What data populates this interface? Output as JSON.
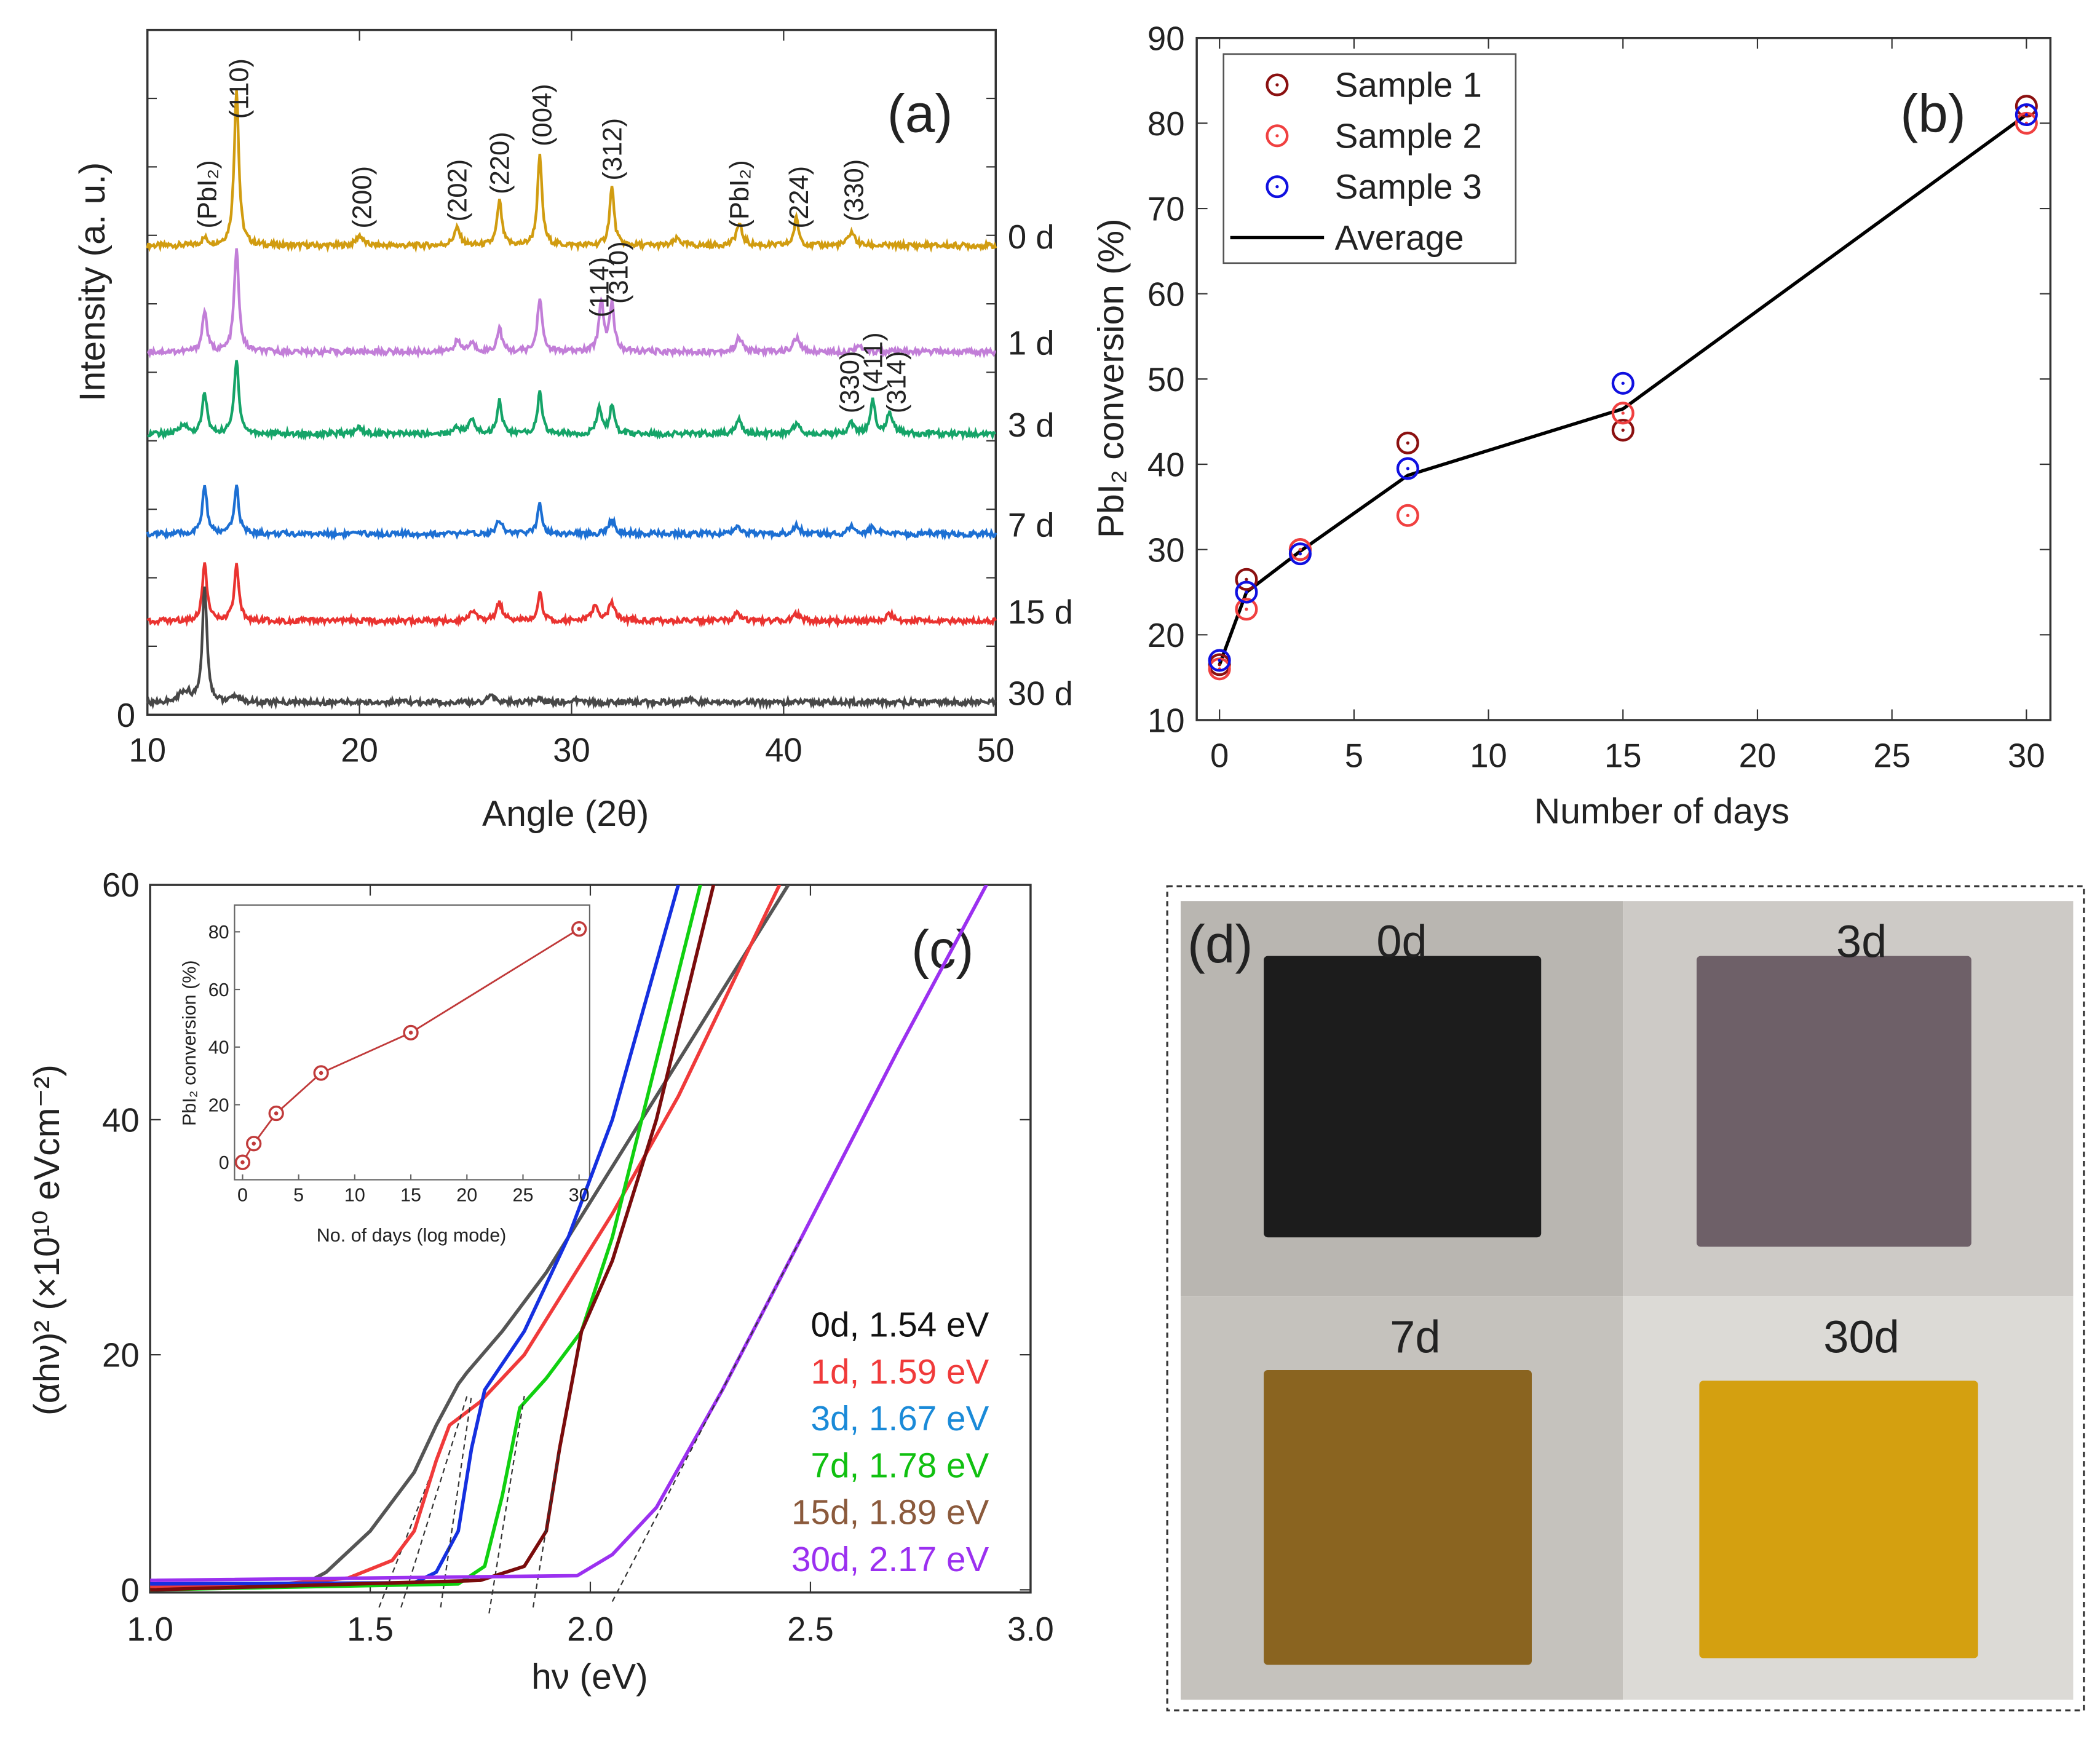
{
  "chart_data": [
    {
      "panel": "(a)",
      "type": "line",
      "xlabel": "Angle (2θ)",
      "ylabel": "Intensity (a. u.)",
      "xlim": [
        10,
        50
      ],
      "xticks": [
        "10",
        "20",
        "30",
        "40",
        "50"
      ],
      "yticks": [
        "0"
      ],
      "series": [
        {
          "name": "0 d",
          "color": "#d19c10",
          "offset": 68.5,
          "peaks": [
            [
              12.7,
              1
            ],
            [
              14.2,
              23
            ],
            [
              20,
              1.5
            ],
            [
              24.6,
              2.5
            ],
            [
              26.6,
              6.5
            ],
            [
              28.5,
              13
            ],
            [
              31.9,
              8.5
            ],
            [
              35,
              1
            ],
            [
              37.9,
              3
            ],
            [
              40.6,
              4
            ],
            [
              43.2,
              2
            ]
          ]
        },
        {
          "name": "1 d",
          "color": "#c27ed8",
          "offset": 53,
          "peaks": [
            [
              12.7,
              6
            ],
            [
              14.2,
              15
            ],
            [
              24.6,
              1.5
            ],
            [
              25.3,
              1.2
            ],
            [
              26.6,
              3.5
            ],
            [
              28.5,
              8
            ],
            [
              31.4,
              7.5
            ],
            [
              31.9,
              7
            ],
            [
              37.9,
              2
            ],
            [
              40.6,
              2
            ],
            [
              43.5,
              1
            ]
          ]
        },
        {
          "name": "3 d",
          "color": "#15a468",
          "offset": 41,
          "peaks": [
            [
              11.7,
              1.5
            ],
            [
              12.7,
              6
            ],
            [
              14.2,
              11
            ],
            [
              20,
              1
            ],
            [
              24.6,
              1
            ],
            [
              25.3,
              2
            ],
            [
              26.6,
              5
            ],
            [
              28.5,
              6
            ],
            [
              31.3,
              4
            ],
            [
              31.9,
              4
            ],
            [
              37.9,
              2
            ],
            [
              40.6,
              1.5
            ],
            [
              43.2,
              1.5
            ],
            [
              44.2,
              5
            ],
            [
              45,
              3
            ]
          ]
        },
        {
          "name": "7 d",
          "color": "#1c6fd3",
          "offset": 26.4,
          "peaks": [
            [
              12.7,
              7
            ],
            [
              14.2,
              7
            ],
            [
              26.6,
              2
            ],
            [
              28.5,
              4.5
            ],
            [
              31.9,
              2
            ],
            [
              37.8,
              1.2
            ],
            [
              40.6,
              1.2
            ],
            [
              43.2,
              1
            ],
            [
              44.2,
              1
            ]
          ]
        },
        {
          "name": "15 d",
          "color": "#ea3330",
          "offset": 13.7,
          "peaks": [
            [
              12.7,
              8.5
            ],
            [
              14.2,
              8
            ],
            [
              25.3,
              1.5
            ],
            [
              26.6,
              2.5
            ],
            [
              28.5,
              4
            ],
            [
              31.1,
              2
            ],
            [
              31.9,
              2.5
            ],
            [
              37.8,
              1
            ],
            [
              40.6,
              1
            ],
            [
              45,
              1
            ]
          ]
        },
        {
          "name": "30 d",
          "color": "#474747",
          "offset": 1.8,
          "peaks": [
            [
              11.6,
              1
            ],
            [
              11.9,
              1.2
            ],
            [
              12.7,
              17
            ],
            [
              14.2,
              1
            ],
            [
              26.2,
              1
            ],
            [
              28.5,
              0.6
            ],
            [
              30.4,
              0.5
            ],
            [
              35.5,
              0.5
            ]
          ]
        }
      ],
      "annotations": [
        {
          "text": "(PbI₂)",
          "x": 12.8,
          "y": 71
        },
        {
          "text": "(110)",
          "x": 14.3,
          "y": 87
        },
        {
          "text": "(200)",
          "x": 20.1,
          "y": 71
        },
        {
          "text": "(202)",
          "x": 24.6,
          "y": 72
        },
        {
          "text": "(220)",
          "x": 26.6,
          "y": 76
        },
        {
          "text": "(004)",
          "x": 28.6,
          "y": 83
        },
        {
          "text": "(312)",
          "x": 31.9,
          "y": 78
        },
        {
          "text": "(114)",
          "x": 31.3,
          "y": 58
        },
        {
          "text": "(310)",
          "x": 32.2,
          "y": 60
        },
        {
          "text": "(PbI₂)",
          "x": 37.9,
          "y": 71
        },
        {
          "text": "(224)",
          "x": 40.7,
          "y": 71
        },
        {
          "text": "(330)",
          "x": 43.3,
          "y": 72
        },
        {
          "text": "(330)",
          "x": 43.1,
          "y": 44
        },
        {
          "text": "(411)",
          "x": 44.2,
          "y": 47
        },
        {
          "text": "(314)",
          "x": 45.3,
          "y": 44
        }
      ]
    },
    {
      "panel": "(b)",
      "type": "scatter",
      "xlabel": "Number of days",
      "ylabel": "PbI₂ conversion (%)",
      "xlim": [
        -0.5,
        31
      ],
      "ylim": [
        10,
        90
      ],
      "xticks": [
        "0",
        "5",
        "10",
        "15",
        "20",
        "25",
        "30"
      ],
      "yticks": [
        "10",
        "20",
        "30",
        "40",
        "50",
        "60",
        "70",
        "80",
        "90"
      ],
      "legend": "top-left",
      "x": [
        0,
        1,
        3,
        7,
        15,
        30
      ],
      "series": [
        {
          "name": "Sample 1",
          "color": "#8b1010",
          "marker": "circle-dot",
          "values": [
            16.5,
            26.5,
            30,
            42.5,
            44,
            82
          ]
        },
        {
          "name": "Sample 2",
          "color": "#f04040",
          "marker": "circle-dot",
          "values": [
            16,
            23,
            30,
            34,
            46,
            80
          ]
        },
        {
          "name": "Sample 3",
          "color": "#1010e0",
          "marker": "circle-dot",
          "values": [
            17,
            25,
            29.5,
            39.5,
            49.5,
            81
          ]
        },
        {
          "name": "Average",
          "color": "#000000",
          "marker": "line",
          "values": [
            16.5,
            25,
            29.8,
            38.7,
            46.5,
            81
          ]
        }
      ]
    },
    {
      "panel": "(c)",
      "type": "line",
      "xlabel": "hν (eV)",
      "ylabel": "(αhν)² (×10¹⁰ eVcm⁻²)",
      "xlim": [
        1.0,
        3.0
      ],
      "ylim": [
        0,
        60
      ],
      "xticks": [
        "1.0",
        "1.5",
        "2.0",
        "2.5",
        "3.0"
      ],
      "yticks": [
        "0",
        "20",
        "40",
        "60"
      ],
      "legend": "bottom-right",
      "series": [
        {
          "name": "0d, 1.54 eV",
          "color": "#555555",
          "label_color": "#111111",
          "points": [
            [
              1.0,
              0.5
            ],
            [
              1.35,
              0.5
            ],
            [
              1.4,
              1.5
            ],
            [
              1.5,
              5
            ],
            [
              1.6,
              10
            ],
            [
              1.65,
              14
            ],
            [
              1.7,
              17.5
            ],
            [
              1.72,
              18.5
            ],
            [
              1.8,
              22
            ],
            [
              1.9,
              27
            ],
            [
              2.0,
              33
            ],
            [
              2.2,
              45
            ],
            [
              2.45,
              60
            ]
          ],
          "tangent": [
            [
              1.52,
              -1.5
            ],
            [
              1.64,
              10
            ]
          ]
        },
        {
          "name": "1d, 1.59 eV",
          "color": "#f03a3a",
          "label_color": "#f03a3a",
          "points": [
            [
              1.0,
              0.3
            ],
            [
              1.3,
              0.5
            ],
            [
              1.45,
              1
            ],
            [
              1.55,
              2.5
            ],
            [
              1.6,
              5
            ],
            [
              1.65,
              11
            ],
            [
              1.68,
              14
            ],
            [
              1.75,
              16
            ],
            [
              1.85,
              20
            ],
            [
              1.95,
              26
            ],
            [
              2.05,
              32
            ],
            [
              2.2,
              42
            ],
            [
              2.43,
              60
            ]
          ],
          "tangent": [
            [
              1.57,
              -1.5
            ],
            [
              1.72,
              16.5
            ]
          ]
        },
        {
          "name": "3d, 1.67 eV",
          "color": "#1530e0",
          "label_color": "#1a8ad8",
          "points": [
            [
              1.0,
              0.5
            ],
            [
              1.6,
              0.6
            ],
            [
              1.65,
              1.5
            ],
            [
              1.7,
              5
            ],
            [
              1.73,
              12
            ],
            [
              1.76,
              17
            ],
            [
              1.85,
              22
            ],
            [
              1.95,
              30
            ],
            [
              2.05,
              40
            ],
            [
              2.2,
              60
            ]
          ],
          "tangent": [
            [
              1.66,
              -1.5
            ],
            [
              1.73,
              16.5
            ]
          ]
        },
        {
          "name": "7d, 1.78 eV",
          "color": "#10d010",
          "label_color": "#10c010",
          "points": [
            [
              1.0,
              0
            ],
            [
              1.7,
              0.5
            ],
            [
              1.76,
              2
            ],
            [
              1.8,
              8
            ],
            [
              1.84,
              15.5
            ],
            [
              1.9,
              18
            ],
            [
              1.98,
              22
            ],
            [
              2.05,
              30
            ],
            [
              2.15,
              45
            ],
            [
              2.25,
              60
            ]
          ],
          "tangent": [
            [
              1.77,
              -2
            ],
            [
              1.85,
              16.5
            ]
          ]
        },
        {
          "name": "15d, 1.89 eV",
          "color": "#7a0c0c",
          "label_color": "#8b5a3c",
          "points": [
            [
              1.0,
              0
            ],
            [
              1.75,
              0.8
            ],
            [
              1.85,
              2
            ],
            [
              1.9,
              5
            ],
            [
              1.93,
              12
            ],
            [
              1.98,
              22
            ],
            [
              2.05,
              28
            ],
            [
              2.15,
              40
            ],
            [
              2.28,
              60
            ]
          ],
          "tangent": [
            [
              1.87,
              -1.5
            ],
            [
              1.93,
              12
            ]
          ]
        },
        {
          "name": "30d, 2.17 eV",
          "color": "#9b30f0",
          "label_color": "#9b30f0",
          "points": [
            [
              1.0,
              0.8
            ],
            [
              1.97,
              1.2
            ],
            [
              2.05,
              3
            ],
            [
              2.15,
              7
            ],
            [
              2.3,
              17
            ],
            [
              2.48,
              30
            ],
            [
              2.7,
              46
            ],
            [
              2.8,
              53
            ],
            [
              2.9,
              60
            ]
          ],
          "tangent": [
            [
              2.05,
              -1
            ],
            [
              2.48,
              30
            ]
          ]
        }
      ],
      "inset": {
        "type": "line",
        "xlabel": "No. of days (log mode)",
        "ylabel": "PbI₂ conversion (%)",
        "xlim": [
          -1,
          31
        ],
        "ylim": [
          -6,
          90
        ],
        "xticks": [
          "0",
          "5",
          "10",
          "15",
          "20",
          "25",
          "30"
        ],
        "yticks": [
          "0",
          "20",
          "40",
          "60",
          "80"
        ],
        "color": "#c03a3a",
        "x": [
          0,
          1,
          3,
          7,
          15,
          30
        ],
        "values": [
          0,
          6.5,
          17,
          31,
          45,
          81
        ]
      }
    }
  ],
  "labels": {
    "a": "(a)",
    "b": "(b)",
    "c": "(c)",
    "d": "(d)"
  },
  "photos": {
    "items": [
      {
        "label": "0d",
        "film_color": "#1c1c1c"
      },
      {
        "label": "3d",
        "film_color": "#6e6068"
      },
      {
        "label": "7d",
        "film_color": "#8a6420"
      },
      {
        "label": "30d",
        "film_color": "#d4a010"
      }
    ]
  }
}
